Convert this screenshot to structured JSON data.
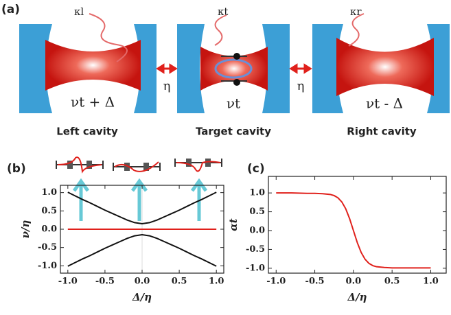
{
  "panel_a": {
    "label": "(a)",
    "kappas": [
      "κl",
      "κt",
      "κr"
    ],
    "couplings": [
      "η",
      "η"
    ],
    "frequencies": [
      "νt + Δ",
      "νt",
      "νt - Δ"
    ],
    "cavity_names": [
      "Left cavity",
      "Target cavity",
      "Right cavity"
    ]
  },
  "chart_data": [
    {
      "type": "line",
      "panel_label": "(b)",
      "xlabel": "Δ/η",
      "ylabel": "ν/η",
      "x": [
        -1.0,
        -0.9,
        -0.8,
        -0.7,
        -0.6,
        -0.5,
        -0.4,
        -0.3,
        -0.2,
        -0.1,
        0.0,
        0.1,
        0.2,
        0.3,
        0.4,
        0.5,
        0.6,
        0.7,
        0.8,
        0.9,
        1.0
      ],
      "series": [
        {
          "color": "#111111",
          "values": [
            1.01,
            0.91,
            0.81,
            0.72,
            0.62,
            0.52,
            0.43,
            0.34,
            0.25,
            0.18,
            0.15,
            0.18,
            0.25,
            0.34,
            0.43,
            0.52,
            0.62,
            0.72,
            0.81,
            0.91,
            1.01
          ]
        },
        {
          "color": "#111111",
          "values": [
            -1.01,
            -0.91,
            -0.81,
            -0.72,
            -0.62,
            -0.52,
            -0.43,
            -0.34,
            -0.25,
            -0.18,
            -0.15,
            -0.18,
            -0.25,
            -0.34,
            -0.43,
            -0.52,
            -0.62,
            -0.72,
            -0.81,
            -0.91,
            -1.01
          ]
        },
        {
          "color": "#e0201b",
          "values": [
            0,
            0,
            0,
            0,
            0,
            0,
            0,
            0,
            0,
            0,
            0,
            0,
            0,
            0,
            0,
            0,
            0,
            0,
            0,
            0,
            0
          ]
        }
      ],
      "xlim": [
        -1.1,
        1.1
      ],
      "ylim": [
        -1.2,
        1.2
      ],
      "xticks": [
        {
          "value": -1,
          "label": "-1.0"
        },
        -0.5,
        {
          "value": 0,
          "label": "0.0"
        },
        0.5,
        {
          "value": 1,
          "label": "1.0"
        }
      ],
      "yticks": [
        {
          "value": -1,
          "label": "-1.0"
        },
        -0.5,
        {
          "value": 0,
          "label": "0.0"
        },
        0.5,
        {
          "value": 1,
          "label": "1.0"
        }
      ]
    },
    {
      "type": "line",
      "panel_label": "(c)",
      "xlabel": "Δ/η",
      "ylabel": "αt",
      "x": [
        -1.0,
        -0.8,
        -0.6,
        -0.5,
        -0.4,
        -0.3,
        -0.25,
        -0.2,
        -0.15,
        -0.1,
        -0.05,
        0.0,
        0.05,
        0.1,
        0.15,
        0.2,
        0.25,
        0.3,
        0.4,
        0.5,
        0.6,
        0.8,
        1.0
      ],
      "series": [
        {
          "color": "#e0201b",
          "values": [
            1.0,
            1.0,
            0.99,
            0.99,
            0.98,
            0.96,
            0.93,
            0.87,
            0.76,
            0.58,
            0.32,
            0.0,
            -0.32,
            -0.58,
            -0.76,
            -0.87,
            -0.93,
            -0.96,
            -0.98,
            -0.99,
            -0.99,
            -0.99,
            -0.99
          ]
        }
      ],
      "xlim": [
        -1.1,
        1.2
      ],
      "ylim": [
        -1.13,
        1.44
      ],
      "xticks": [
        {
          "value": -1,
          "label": "-1.0"
        },
        -0.5,
        {
          "value": 0,
          "label": "0.0"
        },
        0.5,
        {
          "value": 1,
          "label": "1.0"
        }
      ],
      "yticks": [
        {
          "value": -1,
          "label": "-1.0"
        },
        -0.5,
        {
          "value": 0,
          "label": "0.0"
        },
        0.5,
        {
          "value": 1,
          "label": "1.0"
        }
      ]
    }
  ]
}
